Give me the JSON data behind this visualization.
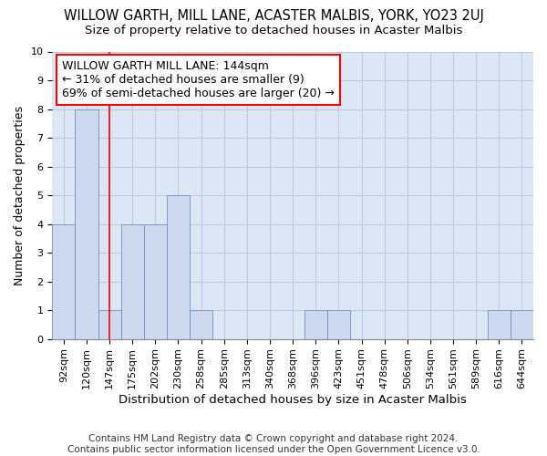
{
  "title": "WILLOW GARTH, MILL LANE, ACASTER MALBIS, YORK, YO23 2UJ",
  "subtitle": "Size of property relative to detached houses in Acaster Malbis",
  "xlabel": "Distribution of detached houses by size in Acaster Malbis",
  "ylabel": "Number of detached properties",
  "categories": [
    "92sqm",
    "120sqm",
    "147sqm",
    "175sqm",
    "202sqm",
    "230sqm",
    "258sqm",
    "285sqm",
    "313sqm",
    "340sqm",
    "368sqm",
    "396sqm",
    "423sqm",
    "451sqm",
    "478sqm",
    "506sqm",
    "534sqm",
    "561sqm",
    "589sqm",
    "616sqm",
    "644sqm"
  ],
  "values": [
    4,
    8,
    1,
    4,
    4,
    5,
    1,
    0,
    0,
    0,
    0,
    1,
    1,
    0,
    0,
    0,
    0,
    0,
    0,
    1,
    1
  ],
  "bar_color": "#cdd9ee",
  "bar_edge_color": "#7090c0",
  "bar_edge_width": 0.6,
  "red_line_x": 2.0,
  "annotation_line1": "WILLOW GARTH MILL LANE: 144sqm",
  "annotation_line2": "← 31% of detached houses are smaller (9)",
  "annotation_line3": "69% of semi-detached houses are larger (20) →",
  "annotation_box_color": "white",
  "annotation_box_edge_color": "red",
  "ylim": [
    0,
    10
  ],
  "yticks": [
    0,
    1,
    2,
    3,
    4,
    5,
    6,
    7,
    8,
    9,
    10
  ],
  "grid_color": "#b8c8e0",
  "bg_color": "#dce6f5",
  "footer_line1": "Contains HM Land Registry data © Crown copyright and database right 2024.",
  "footer_line2": "Contains public sector information licensed under the Open Government Licence v3.0.",
  "title_fontsize": 10.5,
  "subtitle_fontsize": 9.5,
  "xlabel_fontsize": 9.5,
  "ylabel_fontsize": 9,
  "tick_fontsize": 8,
  "annotation_fontsize": 9,
  "footer_fontsize": 7.5
}
